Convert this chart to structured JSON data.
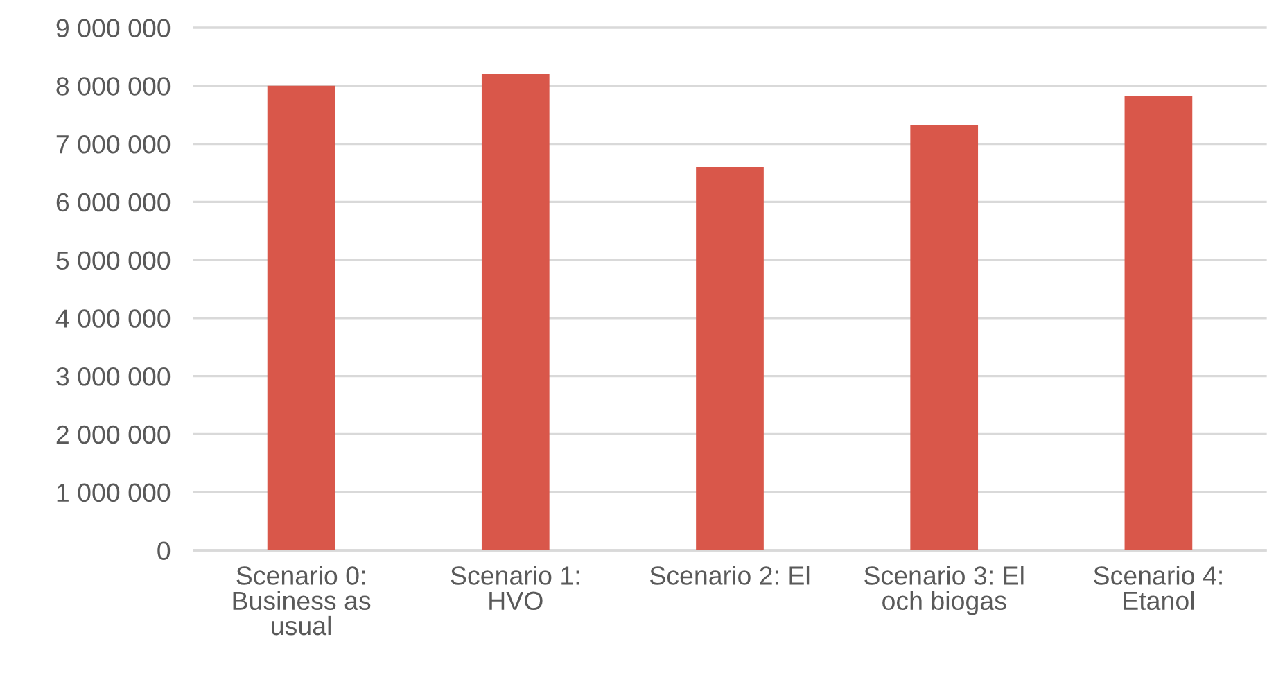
{
  "chart_data": {
    "type": "bar",
    "categories": [
      "Scenario 0:\nBusiness as\nusual",
      "Scenario 1:\nHVO",
      "Scenario 2: El",
      "Scenario 3: El\noch biogas",
      "Scenario 4:\nEtanol"
    ],
    "values": [
      8000000,
      8200000,
      6600000,
      7320000,
      7830000
    ],
    "color": "#d9574a",
    "ylim": [
      0,
      9000000
    ],
    "yticks": [
      {
        "value": 0,
        "label": "0"
      },
      {
        "value": 1000000,
        "label": "1 000 000"
      },
      {
        "value": 2000000,
        "label": "2 000 000"
      },
      {
        "value": 3000000,
        "label": "3 000 000"
      },
      {
        "value": 4000000,
        "label": "4 000 000"
      },
      {
        "value": 5000000,
        "label": "5 000 000"
      },
      {
        "value": 6000000,
        "label": "6 000 000"
      },
      {
        "value": 7000000,
        "label": "7 000 000"
      },
      {
        "value": 8000000,
        "label": "8 000 000"
      },
      {
        "value": 9000000,
        "label": "9 000 000"
      }
    ],
    "grid": "y",
    "legend": false
  }
}
